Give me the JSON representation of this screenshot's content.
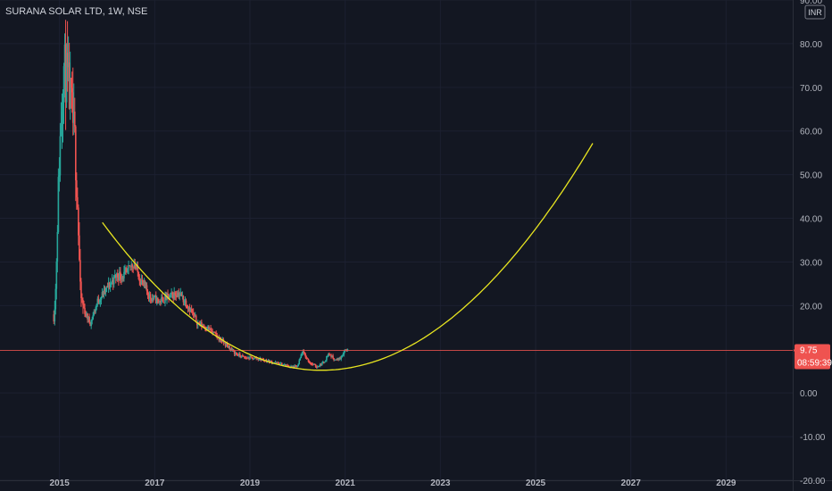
{
  "header": {
    "title_line": "SURANA SOLAR LTD, 1W, NSE",
    "currency_badge": "INR"
  },
  "price_tag": {
    "price": "9.75",
    "countdown": "08:59:39"
  },
  "colors": {
    "background": "#131722",
    "up": "#26a69a",
    "down": "#ef5350",
    "price_line": "#ef5350",
    "curve": "#e8e520",
    "axis_text": "#b2b5be",
    "grid": "#1c2030"
  },
  "chart_data": {
    "type": "candlestick",
    "title": "SURANA SOLAR LTD, 1W, NSE",
    "currency": "INR",
    "x_range": [
      2013.75,
      2030.4
    ],
    "ylim": [
      -20,
      90
    ],
    "x_ticks": [
      {
        "value": 2015,
        "label": "2015"
      },
      {
        "value": 2017,
        "label": "2017"
      },
      {
        "value": 2019,
        "label": "2019"
      },
      {
        "value": 2021,
        "label": "2021"
      },
      {
        "value": 2023,
        "label": "2023"
      },
      {
        "value": 2025,
        "label": "2025"
      },
      {
        "value": 2027,
        "label": "2027"
      },
      {
        "value": 2029,
        "label": "2029"
      }
    ],
    "y_ticks": [
      {
        "value": 90,
        "label": "90.00"
      },
      {
        "value": 80,
        "label": "80.00"
      },
      {
        "value": 70,
        "label": "70.00"
      },
      {
        "value": 60,
        "label": "60.00"
      },
      {
        "value": 50,
        "label": "50.00"
      },
      {
        "value": 40,
        "label": "40.00"
      },
      {
        "value": 30,
        "label": "30.00"
      },
      {
        "value": 20,
        "label": "20.00"
      },
      {
        "value": 0,
        "label": "0.00"
      },
      {
        "value": -10,
        "label": "-10.00"
      },
      {
        "value": -20,
        "label": "-20.00"
      }
    ],
    "last_price": 9.75,
    "price_shape": [
      [
        2014.88,
        18
      ],
      [
        2014.92,
        24
      ],
      [
        2014.97,
        45
      ],
      [
        2015.02,
        60
      ],
      [
        2015.08,
        75
      ],
      [
        2015.15,
        72
      ],
      [
        2015.25,
        65
      ],
      [
        2015.32,
        58
      ],
      [
        2015.38,
        43
      ],
      [
        2015.44,
        22
      ],
      [
        2015.55,
        18
      ],
      [
        2015.65,
        16
      ],
      [
        2015.8,
        21
      ],
      [
        2016.0,
        24
      ],
      [
        2016.2,
        27
      ],
      [
        2016.4,
        27
      ],
      [
        2016.55,
        30
      ],
      [
        2016.7,
        26
      ],
      [
        2016.9,
        22
      ],
      [
        2017.1,
        21
      ],
      [
        2017.3,
        22
      ],
      [
        2017.5,
        23
      ],
      [
        2017.7,
        20
      ],
      [
        2017.9,
        16
      ],
      [
        2018.1,
        15
      ],
      [
        2018.3,
        13
      ],
      [
        2018.5,
        11
      ],
      [
        2018.7,
        9
      ],
      [
        2018.9,
        8
      ],
      [
        2019.1,
        8
      ],
      [
        2019.3,
        7.5
      ],
      [
        2019.5,
        7
      ],
      [
        2019.7,
        6.5
      ],
      [
        2019.85,
        6
      ],
      [
        2020.0,
        6
      ],
      [
        2020.1,
        9.5
      ],
      [
        2020.25,
        7
      ],
      [
        2020.4,
        6
      ],
      [
        2020.55,
        7
      ],
      [
        2020.65,
        9
      ],
      [
        2020.8,
        7.5
      ],
      [
        2020.9,
        8
      ],
      [
        2021.0,
        10
      ],
      [
        2021.06,
        9.75
      ]
    ],
    "curve": {
      "label": "",
      "x_start": 2015.9,
      "x_end": 2026.2,
      "vertex_x": 2020.5,
      "vertex_y": 5.2,
      "coefficient": 1.6
    }
  }
}
